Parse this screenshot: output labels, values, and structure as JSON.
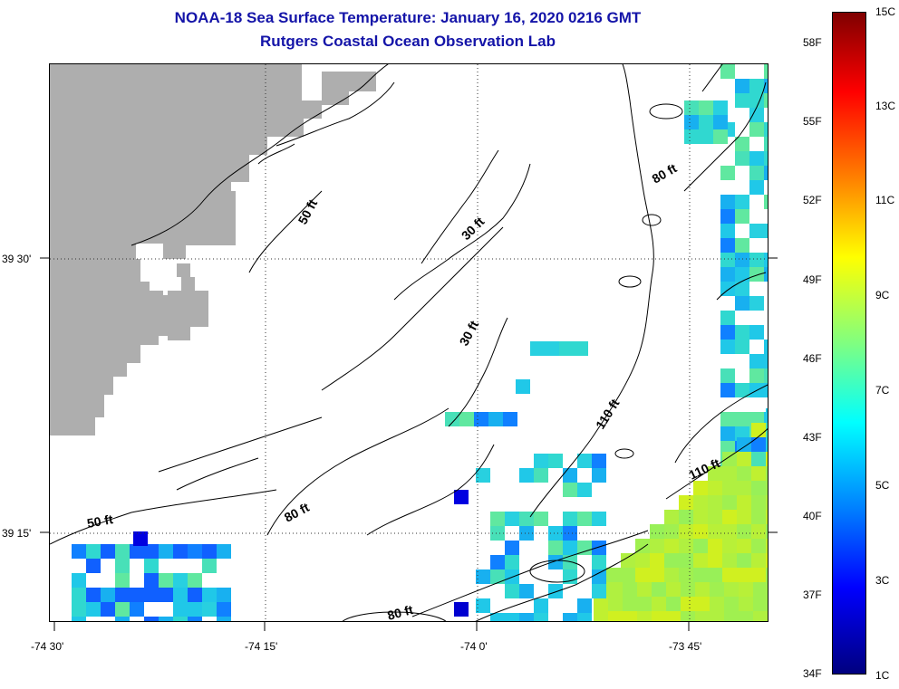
{
  "header": {
    "title": "NOAA-18 Sea Surface Temperature:  January 16, 2020 0216 GMT",
    "subtitle": "Rutgers Coastal Ocean Observation Lab"
  },
  "map": {
    "lon_labels": [
      "-74 30'",
      "-74 15'",
      "-74 0'",
      "-73 45'"
    ],
    "lat_labels": [
      "39 30'",
      "39 15'"
    ],
    "contour_labels": [
      "50 ft",
      "30 ft",
      "80 ft",
      "30 ft",
      "110 ft",
      "110 ft",
      "80 ft",
      "50 ft",
      "80 ft"
    ],
    "colors": {
      "land": "#aeaeae",
      "contour": "#000000"
    }
  },
  "colorbar": {
    "celsius_labels": [
      "15C",
      "13C",
      "11C",
      "9C",
      "7C",
      "5C",
      "3C",
      "1C"
    ],
    "fahrenheit_labels": [
      "58F",
      "55F",
      "52F",
      "49F",
      "46F",
      "43F",
      "40F",
      "37F",
      "34F"
    ],
    "range_c": [
      1,
      15
    ]
  }
}
